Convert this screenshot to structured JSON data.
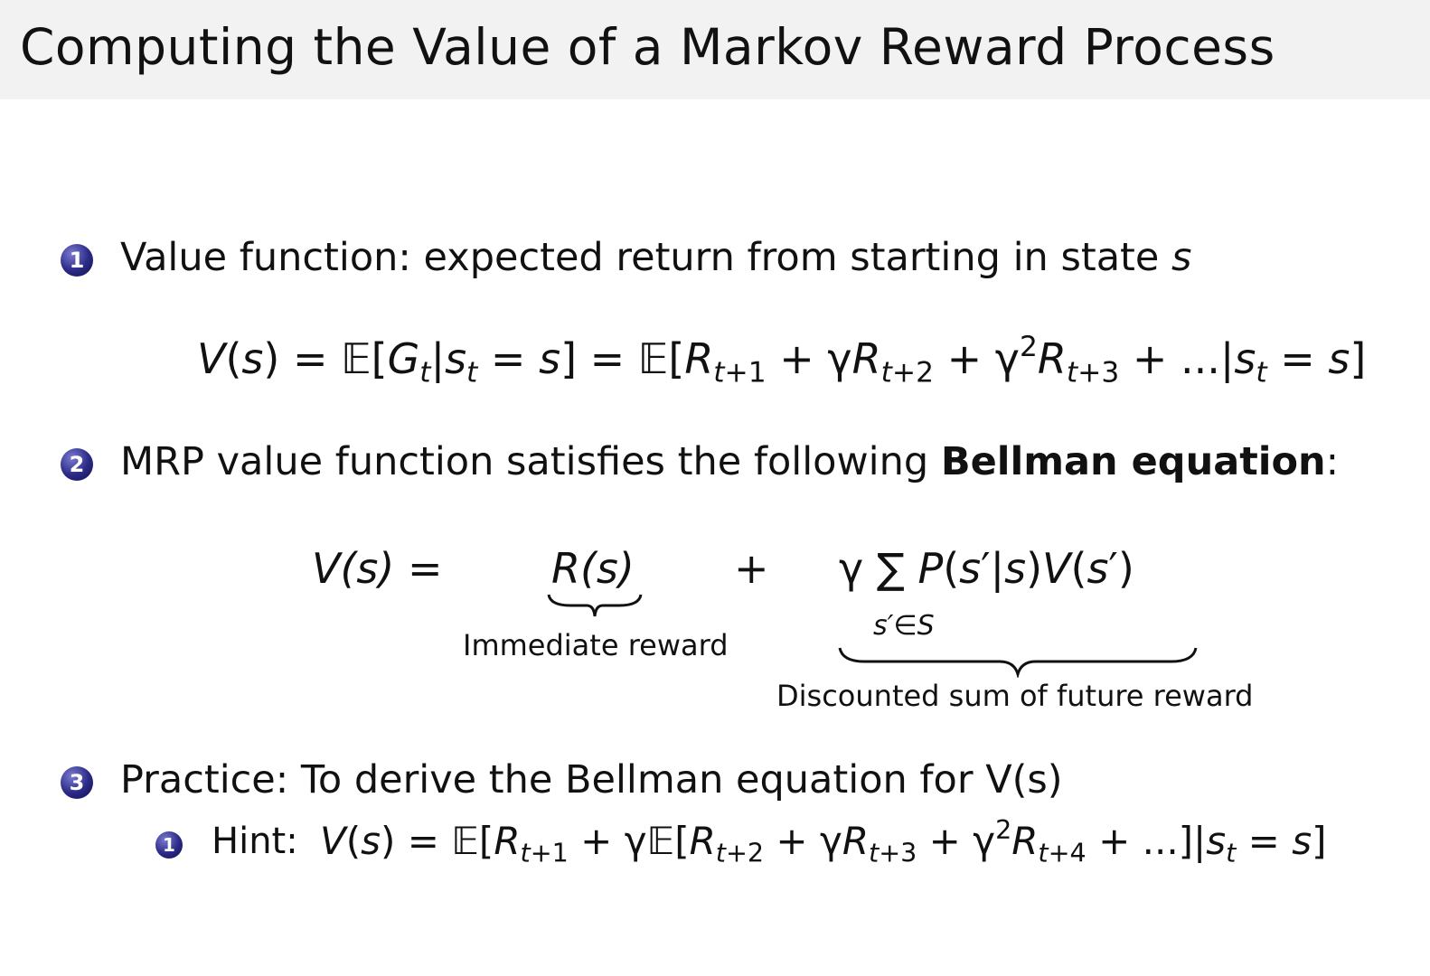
{
  "slide": {
    "title": "Computing the Value of a Markov Reward Process",
    "accent_color": "#2a2a86",
    "items": [
      {
        "number": "1",
        "text": "Value function: expected return from starting in state ",
        "var": "s",
        "equation": "V(s) = 𝔼[G_{t}|s_{t} = s] = 𝔼[R_{t+1} + γR_{t+2} + γ^{2}R_{t+3} + ...|s_{t} = s]"
      },
      {
        "number": "2",
        "text": "MRP value function satisfies the following ",
        "bold": "Bellman equation",
        "suffix": ":",
        "bellman": {
          "lhs": "V(s) =",
          "immediate": "R(s)",
          "immediate_label": "Immediate reward",
          "plus": "+",
          "future": "γ ∑ P(s′|s)V(s′)",
          "sum_index": "s′∈S",
          "future_label": "Discounted sum of future reward"
        }
      },
      {
        "number": "3",
        "text": "Practice: To derive the Bellman equation for V(s)",
        "subitems": [
          {
            "number": "1",
            "label": "Hint: ",
            "equation": "V(s) = 𝔼[R_{t+1} + γ𝔼[R_{t+2} + γR_{t+3} + γ^{2}R_{t+4} + ...]|s_{t} = s]"
          }
        ]
      }
    ]
  }
}
